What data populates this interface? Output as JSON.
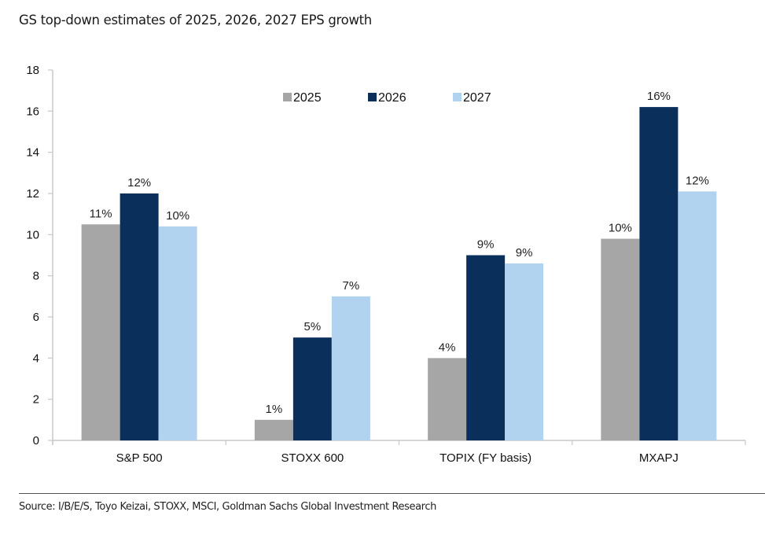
{
  "chart_data": {
    "type": "bar",
    "title": "GS top-down estimates of 2025, 2026, 2027 EPS growth",
    "xlabel": "",
    "ylabel": "",
    "ylim": [
      0,
      18
    ],
    "yticks": [
      0,
      2,
      4,
      6,
      8,
      10,
      12,
      14,
      16,
      18
    ],
    "grid": false,
    "legend_position": "top-center",
    "categories": [
      "S&P 500",
      "STOXX 600",
      "TOPIX (FY basis)",
      "MXAPJ"
    ],
    "series": [
      {
        "name": "2025",
        "color": "#a6a6a6",
        "values": [
          10.5,
          1.0,
          4.0,
          9.8
        ],
        "labels": [
          "11%",
          "1%",
          "4%",
          "10%"
        ]
      },
      {
        "name": "2026",
        "color": "#0b2f5b",
        "values": [
          12.0,
          5.0,
          9.0,
          16.2
        ],
        "labels": [
          "12%",
          "5%",
          "9%",
          "16%"
        ]
      },
      {
        "name": "2027",
        "color": "#b1d3f0",
        "values": [
          10.4,
          7.0,
          8.6,
          12.1
        ],
        "labels": [
          "10%",
          "7%",
          "9%",
          "12%"
        ]
      }
    ]
  },
  "source": "Source: I/B/E/S, Toyo Keizai, STOXX, MSCI, Goldman Sachs Global Investment Research"
}
